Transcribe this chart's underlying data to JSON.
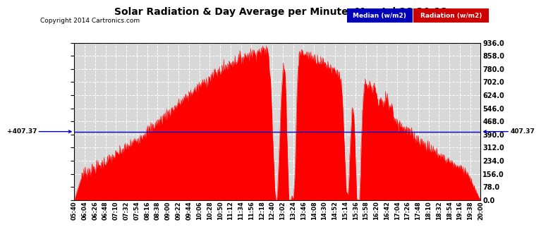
{
  "title": "Solar Radiation & Day Average per Minute  Mon Jul 28 20:12",
  "copyright": "Copyright 2014 Cartronics.com",
  "median_value": 407.37,
  "y_ticks": [
    0.0,
    78.0,
    156.0,
    234.0,
    312.0,
    390.0,
    468.0,
    546.0,
    624.0,
    702.0,
    780.0,
    858.0,
    936.0
  ],
  "ymax": 936.0,
  "ymin": 0.0,
  "bg_color": "#ffffff",
  "plot_bg_color": "#d8d8d8",
  "grid_color": "#ffffff",
  "fill_color": "#ff0000",
  "median_line_color": "#0000cc",
  "legend_median_bg": "#0000bb",
  "legend_radiation_bg": "#cc0000",
  "x_labels": [
    "05:40",
    "06:04",
    "06:26",
    "06:48",
    "07:10",
    "07:32",
    "07:54",
    "08:16",
    "08:38",
    "09:00",
    "09:22",
    "09:44",
    "10:06",
    "10:28",
    "10:50",
    "11:12",
    "11:34",
    "11:56",
    "12:18",
    "12:40",
    "13:02",
    "13:24",
    "13:46",
    "14:08",
    "14:30",
    "14:52",
    "15:14",
    "15:36",
    "15:58",
    "16:20",
    "16:42",
    "17:04",
    "17:26",
    "17:48",
    "18:10",
    "18:32",
    "18:54",
    "19:16",
    "19:38",
    "20:00"
  ],
  "median_label": "Median (w/m2)",
  "radiation_label": "Radiation (w/m2)"
}
